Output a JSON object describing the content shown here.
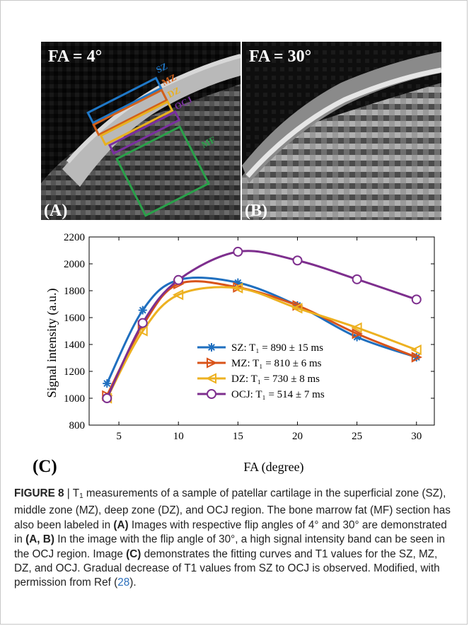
{
  "panels": {
    "a": {
      "label": "(A)",
      "fa_text": "FA = 4°"
    },
    "b": {
      "label": "(B)",
      "fa_text": "FA = 30°"
    }
  },
  "roi_labels": [
    {
      "text": "SZ",
      "color": "#1f78c8"
    },
    {
      "text": "MZ",
      "color": "#d2601a"
    },
    {
      "text": "DZ",
      "color": "#e8b020"
    },
    {
      "text": "OCJ",
      "color": "#7a2fa0"
    },
    {
      "text": "MF",
      "color": "#2aa04a"
    }
  ],
  "chart_data": {
    "type": "line",
    "panel_label": "(C)",
    "xlabel": "FA (degree)",
    "ylabel": "Signal intensity (a.u.)",
    "xlim": [
      2.5,
      31.5
    ],
    "ylim": [
      800,
      2200
    ],
    "xticks": [
      5,
      10,
      15,
      20,
      25,
      30
    ],
    "yticks": [
      800,
      1000,
      1200,
      1400,
      1600,
      1800,
      2000,
      2200
    ],
    "grid": false,
    "legend_position": "bottom-center",
    "series": [
      {
        "name": "SZ",
        "legend": "SZ: T₁ = 890 ± 15 ms",
        "color": "#1f6fbf",
        "marker": "asterisk",
        "x": [
          4,
          7,
          10,
          15,
          20,
          25,
          30
        ],
        "y": [
          1110,
          1655,
          1880,
          1860,
          1690,
          1455,
          1305
        ]
      },
      {
        "name": "MZ",
        "legend": "MZ: T₁ = 810 ± 6 ms",
        "color": "#d95319",
        "marker": "triangle-right",
        "x": [
          4,
          7,
          10,
          15,
          20,
          25,
          30
        ],
        "y": [
          1020,
          1540,
          1850,
          1825,
          1690,
          1480,
          1305
        ]
      },
      {
        "name": "DZ",
        "legend": "DZ: T₁ = 730 ± 8 ms",
        "color": "#edb120",
        "marker": "triangle-left",
        "x": [
          4,
          7,
          10,
          15,
          20,
          25,
          30
        ],
        "y": [
          1000,
          1500,
          1770,
          1820,
          1670,
          1525,
          1360
        ]
      },
      {
        "name": "OCJ",
        "legend": "OCJ: T₁ = 514 ± 7 ms",
        "color": "#7e2f8e",
        "marker": "circle",
        "x": [
          4,
          7,
          10,
          15,
          20,
          25,
          30
        ],
        "y": [
          1000,
          1560,
          1880,
          2090,
          2025,
          1885,
          1735
        ]
      }
    ]
  },
  "caption": {
    "fig_num": "FIGURE 8",
    "sep": " | ",
    "t1_T": "T",
    "t1_sub": "1",
    "p1": " measurements of a sample of patellar cartilage in the superficial zone (SZ), middle zone (MZ), deep zone (DZ), and OCJ region. The bone marrow fat (MF) section has also been labeled in ",
    "refA": "(A)",
    "p2": " Images with respective flip angles of 4° and 30° are demonstrated in ",
    "refAB": "(A, B)",
    "p3": " In the image with the flip angle of 30°, a high signal intensity band can be seen in the OCJ region. Image ",
    "refC": "(C)",
    "p4": " demonstrates the fitting curves and T1 values for the SZ, MZ, DZ, and OCJ. Gradual decrease of T1 values from SZ to OCJ is observed. Modified, with permission from Ref (",
    "ref_num": "28",
    "p5": ")."
  }
}
